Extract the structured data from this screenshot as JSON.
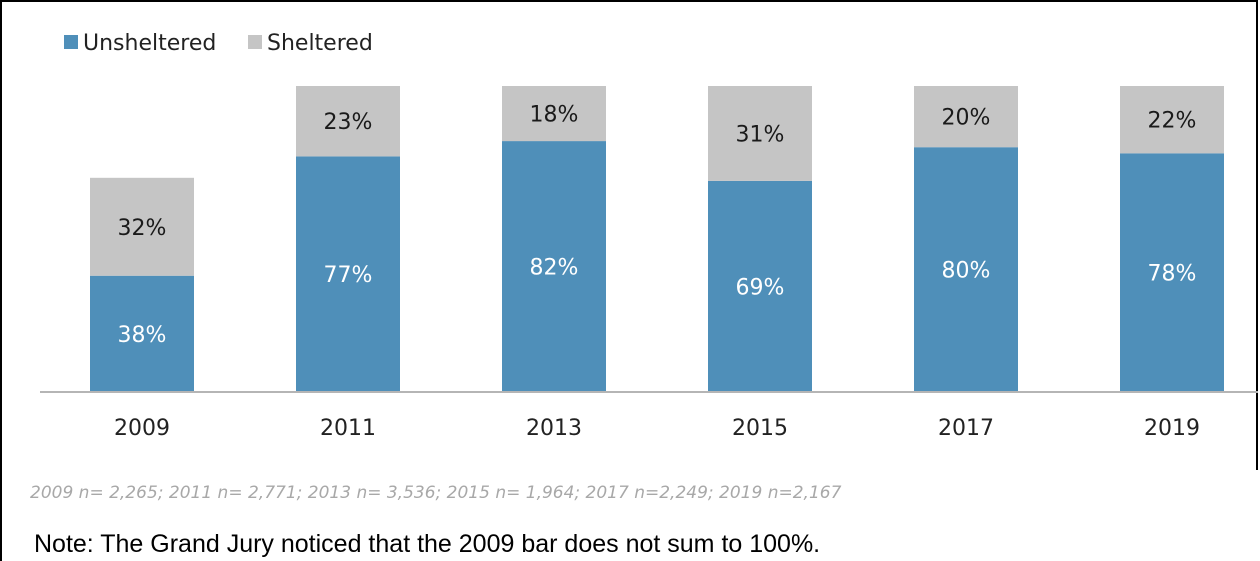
{
  "colors": {
    "unsheltered": "#4f8fb9",
    "sheltered": "#c5c5c5",
    "unsheltered_label": "#ffffff",
    "sheltered_label": "#1a1a1a",
    "axis": "#b5b5b5"
  },
  "legend": {
    "unsheltered": "Unsheltered",
    "sheltered": "Sheltered",
    "placement": "top-left"
  },
  "chart_data": {
    "type": "bar",
    "stacked": true,
    "categories": [
      "2009",
      "2011",
      "2013",
      "2015",
      "2017",
      "2019"
    ],
    "series": [
      {
        "name": "Unsheltered",
        "values": [
          38,
          77,
          82,
          69,
          80,
          78
        ],
        "labels": [
          "38%",
          "77%",
          "82%",
          "69%",
          "80%",
          "78%"
        ]
      },
      {
        "name": "Sheltered",
        "values": [
          32,
          23,
          18,
          31,
          20,
          22
        ],
        "labels": [
          "32%",
          "23%",
          "18%",
          "31%",
          "20%",
          "22%"
        ]
      }
    ],
    "ylim": [
      0,
      100
    ],
    "grid": false
  },
  "footnote": {
    "sample_sizes": "2009 n= 2,265; 2011 n= 2,771; 2013 n= 3,536; 2015 n= 1,964; 2017 n=2,249; 2019 n=2,167",
    "note": "Note: The Grand Jury noticed that the 2009 bar does not sum to 100%."
  }
}
